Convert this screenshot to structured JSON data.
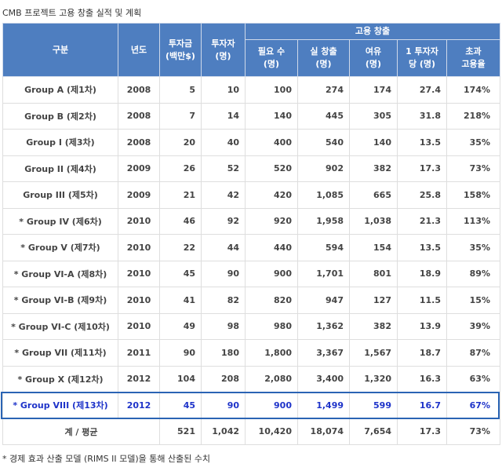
{
  "title": "CMB 프로젝트 고용 창출 실적 및 계획",
  "header": {
    "col_group": "구분",
    "col_year": "년도",
    "col_invest_amount": "투자금\n(백만$)",
    "col_investors": "투자자\n(명)",
    "employment_group": "고용 창출",
    "col_required": "필요 수\n(명)",
    "col_actual": "실 창출\n(명)",
    "col_surplus": "여유\n(명)",
    "col_per_investor": "1 투자자\n당 (명)",
    "col_excess_rate": "초과\n고용율"
  },
  "rows": [
    {
      "group": "Group A (제1차)",
      "year": "2008",
      "invest": "5",
      "investors": "10",
      "required": "100",
      "actual": "274",
      "surplus": "174",
      "per_investor": "27.4",
      "excess": "174%"
    },
    {
      "group": "Group B (제2차)",
      "year": "2008",
      "invest": "7",
      "investors": "14",
      "required": "140",
      "actual": "445",
      "surplus": "305",
      "per_investor": "31.8",
      "excess": "218%"
    },
    {
      "group": "Group I (제3차)",
      "year": "2008",
      "invest": "20",
      "investors": "40",
      "required": "400",
      "actual": "540",
      "surplus": "140",
      "per_investor": "13.5",
      "excess": "35%"
    },
    {
      "group": "Group II (제4차)",
      "year": "2009",
      "invest": "26",
      "investors": "52",
      "required": "520",
      "actual": "902",
      "surplus": "382",
      "per_investor": "17.3",
      "excess": "73%"
    },
    {
      "group": "Group III (제5차)",
      "year": "2009",
      "invest": "21",
      "investors": "42",
      "required": "420",
      "actual": "1,085",
      "surplus": "665",
      "per_investor": "25.8",
      "excess": "158%"
    },
    {
      "group": "* Group IV (제6차)",
      "year": "2010",
      "invest": "46",
      "investors": "92",
      "required": "920",
      "actual": "1,958",
      "surplus": "1,038",
      "per_investor": "21.3",
      "excess": "113%"
    },
    {
      "group": "* Group V (제7차)",
      "year": "2010",
      "invest": "22",
      "investors": "44",
      "required": "440",
      "actual": "594",
      "surplus": "154",
      "per_investor": "13.5",
      "excess": "35%"
    },
    {
      "group": "* Group VI-A (제8차)",
      "year": "2010",
      "invest": "45",
      "investors": "90",
      "required": "900",
      "actual": "1,701",
      "surplus": "801",
      "per_investor": "18.9",
      "excess": "89%"
    },
    {
      "group": "* Group VI-B (제9차)",
      "year": "2010",
      "invest": "41",
      "investors": "82",
      "required": "820",
      "actual": "947",
      "surplus": "127",
      "per_investor": "11.5",
      "excess": "15%"
    },
    {
      "group": "* Group VI-C (제10차)",
      "year": "2010",
      "invest": "49",
      "investors": "98",
      "required": "980",
      "actual": "1,362",
      "surplus": "382",
      "per_investor": "13.9",
      "excess": "39%"
    },
    {
      "group": "* Group VII (제11차)",
      "year": "2011",
      "invest": "90",
      "investors": "180",
      "required": "1,800",
      "actual": "3,367",
      "surplus": "1,567",
      "per_investor": "18.7",
      "excess": "87%"
    },
    {
      "group": "* Group X (제12차)",
      "year": "2012",
      "invest": "104",
      "investors": "208",
      "required": "2,080",
      "actual": "3,400",
      "surplus": "1,320",
      "per_investor": "16.3",
      "excess": "63%"
    },
    {
      "group": "* Group VIII (제13차)",
      "year": "2012",
      "invest": "45",
      "investors": "90",
      "required": "900",
      "actual": "1,499",
      "surplus": "599",
      "per_investor": "16.7",
      "excess": "67%",
      "highlight": true
    }
  ],
  "total": {
    "label": "계 / 평균",
    "invest": "521",
    "investors": "1,042",
    "required": "10,420",
    "actual": "18,074",
    "surplus": "7,654",
    "per_investor": "17.3",
    "excess": "73%"
  },
  "footnote": "* 경제 효과 산출 모델 (RIMS II 모델)을 통해 산출된 수치",
  "colors": {
    "header_bg": "#4e7ec0",
    "highlight_text": "#1e33c9",
    "highlight_border": "#2a64b4"
  }
}
